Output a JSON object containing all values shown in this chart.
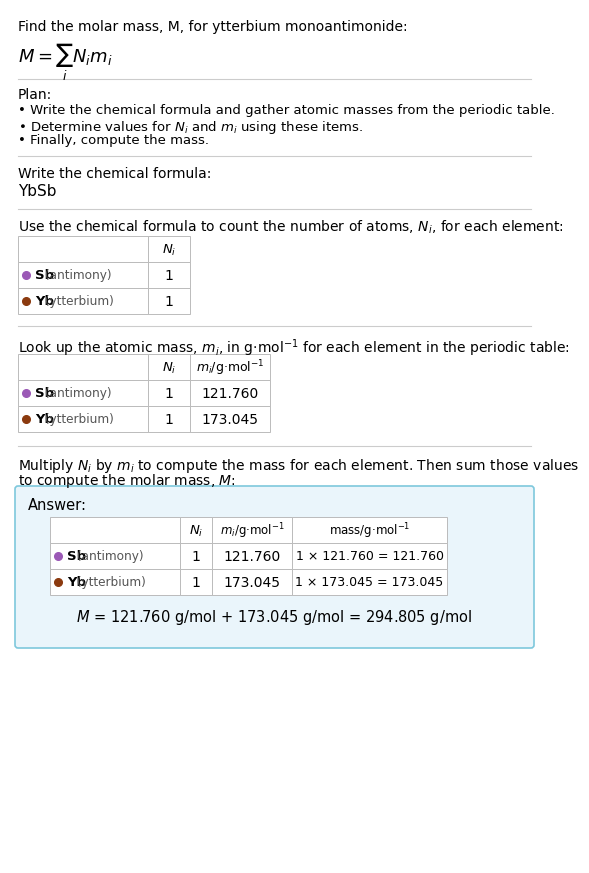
{
  "title_line1": "Find the molar mass, M, for ytterbium monoantimonide:",
  "title_formula": "$M = \\sum_i N_i m_i$",
  "plan_header": "Plan:",
  "plan_bullets": [
    "• Write the chemical formula and gather atomic masses from the periodic table.",
    "• Determine values for $N_i$ and $m_i$ using these items.",
    "• Finally, compute the mass."
  ],
  "formula_label": "Write the chemical formula:",
  "formula_value": "YbSb",
  "count_intro": "Use the chemical formula to count the number of atoms, $N_i$, for each element:",
  "lookup_intro": "Look up the atomic mass, $m_i$, in g·mol$^{-1}$ for each element in the periodic table:",
  "multiply_intro1": "Multiply $N_i$ by $m_i$ to compute the mass for each element. Then sum those values",
  "multiply_intro2": "to compute the molar mass, $M$:",
  "answer_label": "Answer:",
  "rows": [
    {
      "dot_color": "#9B59B6",
      "symbol": "Sb",
      "name": " (antimony)",
      "ni": "1",
      "mi": "121.760",
      "mass": "1 × 121.760 = 121.760"
    },
    {
      "dot_color": "#8B3A0F",
      "symbol": "Yb",
      "name": " (ytterbium)",
      "ni": "1",
      "mi": "173.045",
      "mass": "1 × 173.045 = 173.045"
    }
  ],
  "final_eq": "$M$ = 121.760 g/mol + 173.045 g/mol = 294.805 g/mol",
  "answer_box_fill": "#EAF5FB",
  "answer_box_edge": "#7EC8DC",
  "bg_color": "#FFFFFF",
  "rule_color": "#CCCCCC",
  "table_edge": "#BBBBBB"
}
